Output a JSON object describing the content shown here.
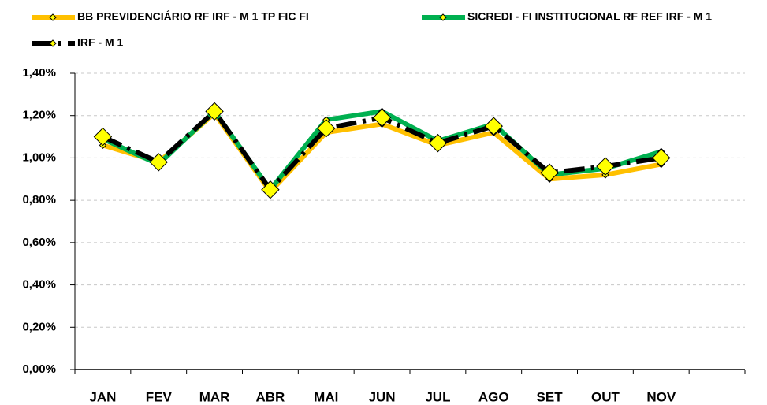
{
  "chart_data": {
    "type": "line",
    "categories": [
      "JAN",
      "FEV",
      "MAR",
      "ABR",
      "MAI",
      "JUN",
      "JUL",
      "AGO",
      "SET",
      "OUT",
      "NOV",
      null
    ],
    "series": [
      {
        "name": "BB PREVIDENCIÁRIO RF IRF - M 1 TP FIC FI",
        "color": "#ffc000",
        "marker_color": "#ffff00",
        "values": [
          1.06,
          0.98,
          1.21,
          0.84,
          1.12,
          1.16,
          1.06,
          1.12,
          0.9,
          0.92,
          0.97,
          null
        ]
      },
      {
        "name": "SICREDI - FI INSTITUCIONAL RF REF IRF - M 1",
        "color": "#00b050",
        "marker_color": "#ffff00",
        "values": [
          1.09,
          0.97,
          1.22,
          0.85,
          1.18,
          1.22,
          1.08,
          1.16,
          0.92,
          0.95,
          1.03,
          null
        ]
      },
      {
        "name": "IRF - M 1",
        "color": "#000000",
        "marker_color": "#ffff00",
        "dashed": true,
        "values": [
          1.1,
          0.98,
          1.22,
          0.85,
          1.14,
          1.19,
          1.07,
          1.15,
          0.93,
          0.96,
          1.0,
          null
        ]
      }
    ],
    "ylim": [
      0,
      1.4
    ],
    "yticks": [
      {
        "value": 0,
        "label": "0,00%"
      },
      {
        "value": 0.2,
        "label": "0,20%"
      },
      {
        "value": 0.4,
        "label": "0,40%"
      },
      {
        "value": 0.6,
        "label": "0,60%"
      },
      {
        "value": 0.8,
        "label": "0,80%"
      },
      {
        "value": 1.0,
        "label": "1,00%"
      },
      {
        "value": 1.2,
        "label": "1,20%"
      },
      {
        "value": 1.4,
        "label": "1,40%"
      }
    ],
    "grid": true,
    "legend": "top"
  }
}
